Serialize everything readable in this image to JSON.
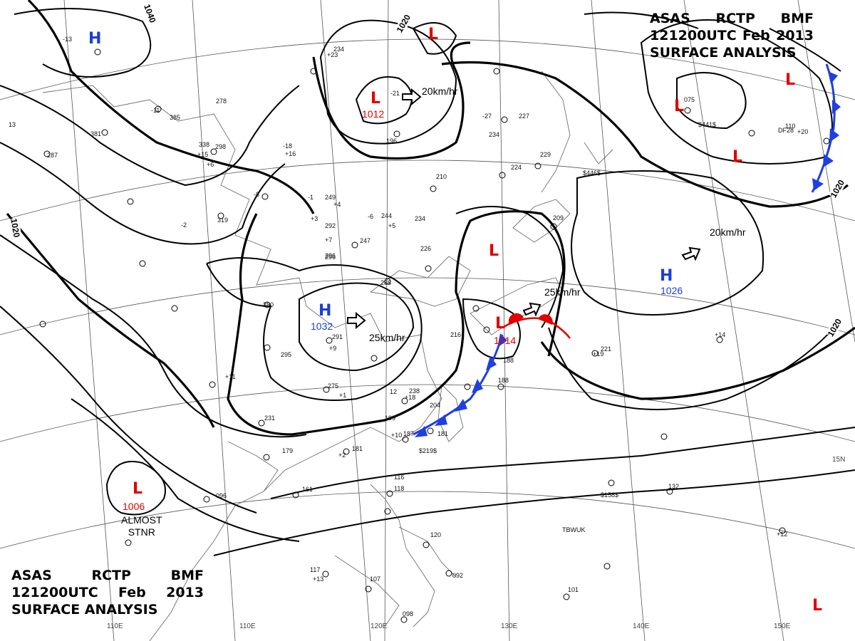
{
  "header": {
    "line1": [
      "ASAS",
      "RCTP",
      "BMF"
    ],
    "line2": [
      "121200UTC",
      "Feb",
      "2013"
    ],
    "line3": "SURFACE ANALYSIS"
  },
  "pressure_centers": [
    {
      "type": "H",
      "label": "H",
      "value": ""
    },
    {
      "type": "L",
      "label": "L",
      "value": "1012"
    },
    {
      "type": "L",
      "label": "L",
      "value": ""
    },
    {
      "type": "H",
      "label": "H",
      "value": "1032"
    },
    {
      "type": "L",
      "label": "L",
      "value": ""
    },
    {
      "type": "L",
      "label": "L",
      "value": "1014"
    },
    {
      "type": "H",
      "label": "H",
      "value": "1026"
    },
    {
      "type": "L",
      "label": "L",
      "value": "1006"
    },
    {
      "type": "L",
      "label": "L",
      "value": ""
    },
    {
      "type": "L",
      "label": "L",
      "value": ""
    },
    {
      "type": "L",
      "label": "L",
      "value": ""
    },
    {
      "type": "L",
      "label": "L",
      "value": ""
    }
  ],
  "motions": [
    "20km/hr",
    "25km/hr",
    "25km/hr",
    "20km/hr"
  ],
  "isobar_labels": [
    "1040",
    "1020",
    "1020",
    "1020",
    "1020"
  ],
  "stationary_note": [
    "ALMOST",
    "STNR"
  ],
  "longitudes": [
    "110E",
    "120E",
    "130E",
    "140E",
    "150E"
  ],
  "latitude_label": "15N",
  "colors": {
    "low": "#e00000",
    "high": "#1a3fd6",
    "cold_front": "#1f3fe0",
    "warm_front": "#e00000",
    "isobar": "#000000",
    "grid": "#555555",
    "coast": "#707070"
  },
  "stations": [
    "229",
    "249",
    "292",
    "296",
    "234",
    "244",
    "247",
    "210",
    "224",
    "227",
    "234",
    "196",
    "288",
    "381",
    "287",
    "338",
    "298",
    "319",
    "296",
    "280",
    "295",
    "291",
    "275",
    "238",
    "204",
    "199",
    "181",
    "179",
    "231",
    "187",
    "181",
    "188",
    "161",
    "096",
    "116",
    "118",
    "120",
    "117",
    "107",
    "092",
    "101",
    "098",
    "132",
    "075",
    "110",
    "221",
    "209",
    "385",
    "278",
    "234",
    "226",
    "216",
    "188",
    "12",
    "13",
    "-2",
    "-13",
    "-11",
    "-6",
    "-1",
    "-8",
    "-18",
    "-21",
    "-27",
    "+7",
    "+6",
    "+3",
    "+4",
    "+2",
    "+1",
    "+5",
    "+11",
    "+12",
    "+13",
    "+14",
    "+15",
    "+16",
    "+18",
    "+19",
    "+20",
    "+23",
    "+9",
    "+10"
  ],
  "markers": [
    "$219$",
    "$158$",
    "$441$",
    "$446$",
    "TBWUK",
    "DF28"
  ]
}
